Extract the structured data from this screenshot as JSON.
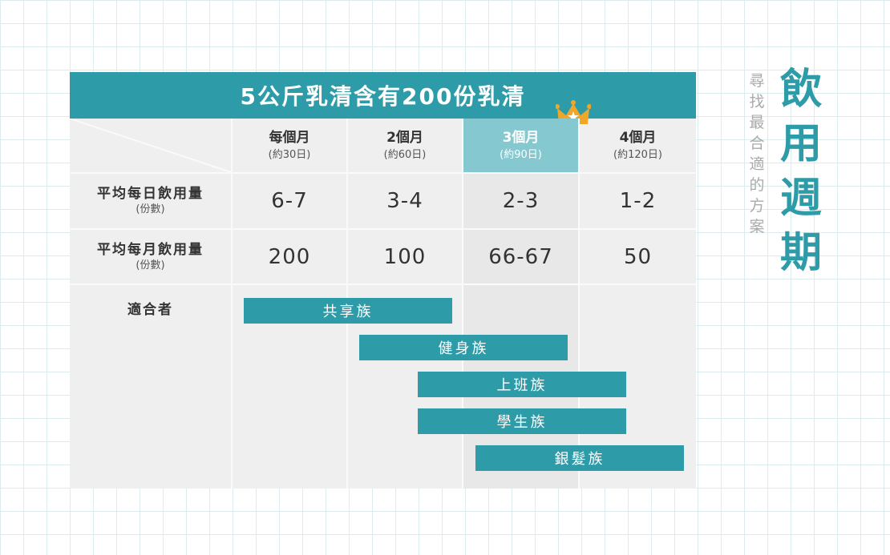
{
  "banner_title": "5公斤乳清含有200份乳清",
  "columns": [
    {
      "title": "每個月",
      "sub": "(約30日)"
    },
    {
      "title": "2個月",
      "sub": "(約60日)"
    },
    {
      "title": "3個月",
      "sub": "(約90日)"
    },
    {
      "title": "4個月",
      "sub": "(約120日)"
    }
  ],
  "highlighted_column": "3個月",
  "rows": [
    {
      "title": "平均每日飲用量",
      "sub": "(份數)",
      "values": [
        "6-7",
        "3-4",
        "2-3",
        "1-2"
      ]
    },
    {
      "title": "平均每月飲用量",
      "sub": "(份數)",
      "values": [
        "200",
        "100",
        "66-67",
        "50"
      ]
    }
  ],
  "suitable_label": "適合者",
  "groups": [
    {
      "label": "共享族",
      "start_month": 1,
      "end_month": 2
    },
    {
      "label": "健身族",
      "start_month": 2,
      "end_month": 3
    },
    {
      "label": "上班族",
      "start_month": 2.5,
      "end_month": 4
    },
    {
      "label": "學生族",
      "start_month": 2.5,
      "end_month": 4
    },
    {
      "label": "銀髮族",
      "start_month": 3,
      "end_month": 4
    }
  ],
  "side_caption": "尋找最合適的方案",
  "side_title": "飲用週期",
  "colors": {
    "accent": "#2e9ba8",
    "highlight": "#86c8d0",
    "crown": "#f0a629"
  },
  "icons": {
    "crown": "crown-icon"
  }
}
